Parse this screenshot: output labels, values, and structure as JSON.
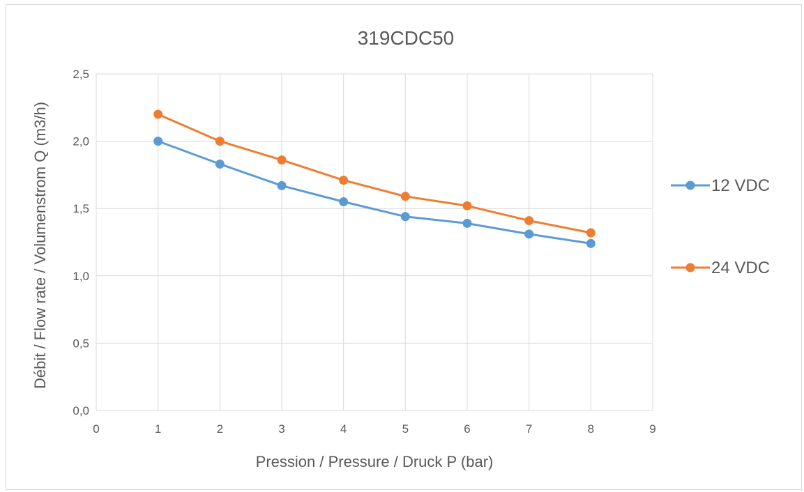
{
  "chart_data": {
    "type": "line",
    "title": "319CDC50",
    "xlabel": "Pression / Pressure / Druck P (bar)",
    "ylabel": "Débit / Flow rate / Volumenstrom Q (m3/h)",
    "xlim": [
      0,
      9
    ],
    "ylim": [
      0,
      2.5
    ],
    "x_ticks": [
      "0",
      "1",
      "2",
      "3",
      "4",
      "5",
      "6",
      "7",
      "8",
      "9"
    ],
    "y_ticks": [
      "0,0",
      "0,5",
      "1,0",
      "1,5",
      "2,0",
      "2,5"
    ],
    "grid": true,
    "legend_position": "right",
    "x": [
      1,
      2,
      3,
      4,
      5,
      6,
      7,
      8
    ],
    "series": [
      {
        "name": "12 VDC",
        "color": "#5b9bd5",
        "values": [
          2.0,
          1.83,
          1.67,
          1.55,
          1.44,
          1.39,
          1.31,
          1.24
        ]
      },
      {
        "name": "24 VDC",
        "color": "#ed7d31",
        "values": [
          2.2,
          2.0,
          1.86,
          1.71,
          1.59,
          1.52,
          1.41,
          1.32
        ]
      }
    ],
    "gridline_color": "#d9d9d9"
  }
}
